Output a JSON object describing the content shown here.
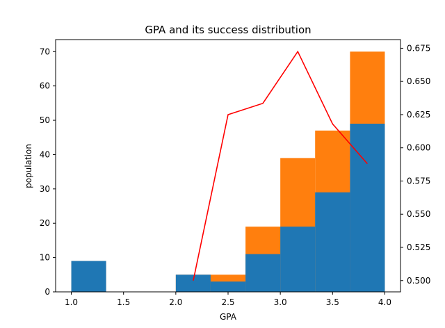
{
  "chart_data": {
    "type": "bar",
    "title": "GPA and its success distribution",
    "xlabel": "GPA",
    "ylabel": "population",
    "y2label": "",
    "xlim": [
      0.85,
      4.15
    ],
    "ylim": [
      0,
      73.5
    ],
    "y2lim": [
      0.4915,
      0.6815
    ],
    "xticks": [
      1.0,
      1.5,
      2.0,
      2.5,
      3.0,
      3.5,
      4.0
    ],
    "xtick_labels": [
      "1.0",
      "1.5",
      "2.0",
      "2.5",
      "3.0",
      "3.5",
      "4.0"
    ],
    "yticks": [
      0,
      10,
      20,
      30,
      40,
      50,
      60,
      70
    ],
    "ytick_labels": [
      "0",
      "10",
      "20",
      "30",
      "40",
      "50",
      "60",
      "70"
    ],
    "y2ticks": [
      0.5,
      0.525,
      0.55,
      0.575,
      0.6,
      0.625,
      0.65,
      0.675
    ],
    "y2tick_labels": [
      "0.500",
      "0.525",
      "0.550",
      "0.575",
      "0.600",
      "0.625",
      "0.650",
      "0.675"
    ],
    "bin_edges": [
      1.0,
      1.333,
      1.667,
      2.0,
      2.333,
      2.667,
      3.0,
      3.333,
      3.667,
      4.0
    ],
    "series": [
      {
        "color": "#1f77b4",
        "values": [
          9,
          0,
          0,
          5,
          3,
          11,
          19,
          29,
          49
        ]
      },
      {
        "color": "#ff7f0e",
        "values": [
          9,
          0,
          0,
          5,
          5,
          19,
          39,
          47,
          70
        ]
      }
    ],
    "line": {
      "axis": "right",
      "color": "#ff0000",
      "x": [
        2.167,
        2.5,
        2.833,
        3.167,
        3.5,
        3.833
      ],
      "y": [
        0.5,
        0.625,
        0.6335,
        0.6725,
        0.618,
        0.588
      ]
    },
    "grid": false,
    "legend": "none"
  }
}
